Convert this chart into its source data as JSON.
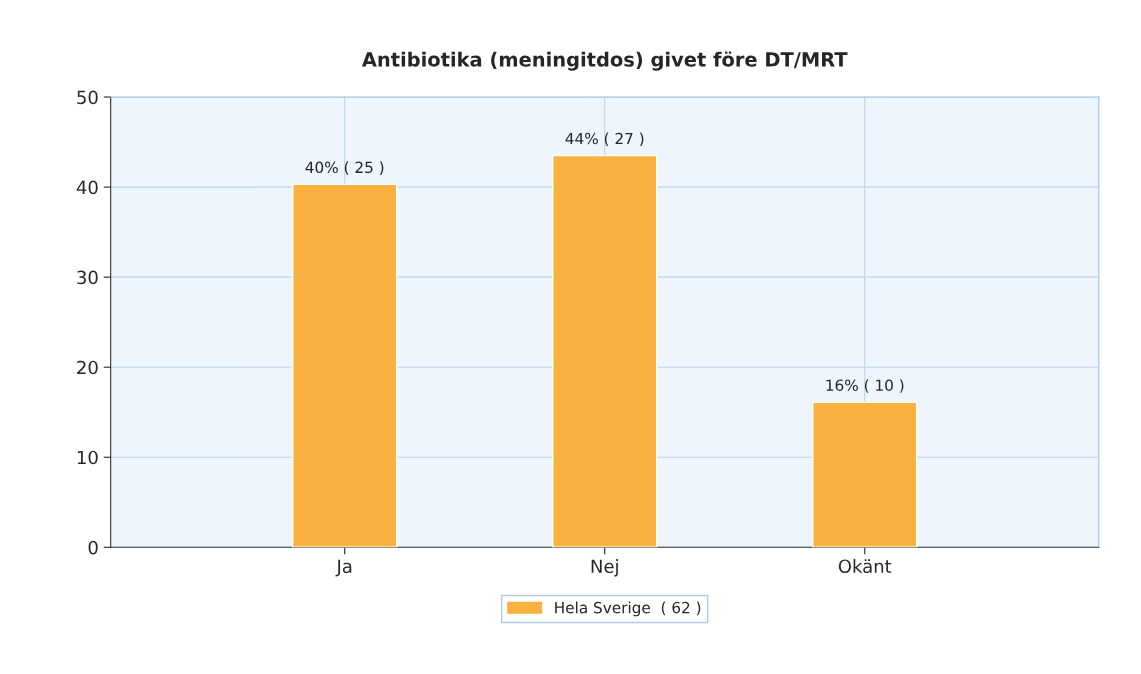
{
  "chart_data": {
    "type": "bar",
    "title": "Antibiotika (meningitdos) givet före DT/MRT",
    "categories": [
      "Ja",
      "Nej",
      "Okänt"
    ],
    "series": [
      {
        "name": "Hela Sverige  ( 62 )",
        "color": "#f9b240",
        "values": [
          40.3,
          43.5,
          16.1
        ],
        "value_labels": [
          "40% ( 25 )",
          "44% ( 27 )",
          "16% ( 10 )"
        ]
      }
    ],
    "ylim": [
      0,
      50
    ],
    "yticks": [
      0,
      10,
      20,
      30,
      40,
      50
    ],
    "grid": true,
    "legend": "bottom"
  }
}
